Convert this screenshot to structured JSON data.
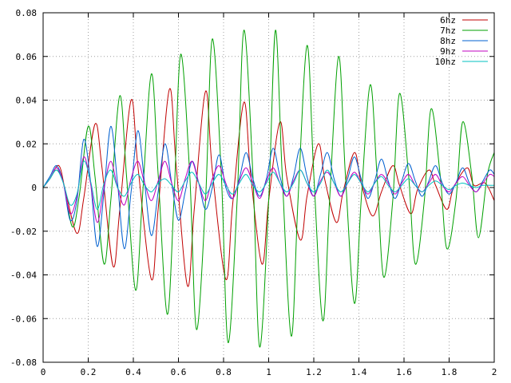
{
  "chart_data": {
    "type": "line",
    "title": "",
    "xlabel": "",
    "ylabel": "",
    "xlim": [
      0,
      2
    ],
    "ylim": [
      -0.08,
      0.08
    ],
    "grid": true,
    "legend_position": "top-right",
    "x_ticks": [
      "0",
      "0.2",
      "0.4",
      "0.6",
      "0.8",
      "1",
      "1.2",
      "1.4",
      "1.6",
      "1.8",
      "2"
    ],
    "x_tick_values": [
      0,
      0.2,
      0.4,
      0.6,
      0.8,
      1.0,
      1.2,
      1.4,
      1.6,
      1.8,
      2.0
    ],
    "y_ticks": [
      "0.08",
      "0.06",
      "0.04",
      "0.02",
      "0",
      "-0.02",
      "-0.04",
      "-0.06",
      "-0.08"
    ],
    "y_tick_values": [
      0.08,
      0.06,
      0.04,
      0.02,
      0,
      -0.02,
      -0.04,
      -0.06,
      -0.08
    ],
    "series": [
      {
        "name": "6hz",
        "color": "#c00000",
        "x": [
          0,
          0.03,
          0.07,
          0.1,
          0.15,
          0.18,
          0.23,
          0.26,
          0.31,
          0.34,
          0.39,
          0.42,
          0.48,
          0.51,
          0.56,
          0.59,
          0.64,
          0.67,
          0.72,
          0.75,
          0.81,
          0.84,
          0.89,
          0.92,
          0.97,
          1.0,
          1.05,
          1.08,
          1.14,
          1.17,
          1.22,
          1.25,
          1.3,
          1.33,
          1.38,
          1.41,
          1.46,
          1.5,
          1.55,
          1.58,
          1.63,
          1.66,
          1.71,
          1.74,
          1.79,
          1.82,
          1.88,
          1.91,
          1.96,
          2.0
        ],
        "y": [
          0,
          0.004,
          0.01,
          -0.002,
          -0.021,
          -0.005,
          0.029,
          0.01,
          -0.036,
          -0.01,
          0.04,
          0.01,
          -0.042,
          -0.01,
          0.045,
          0.01,
          -0.045,
          -0.01,
          0.044,
          0.008,
          -0.042,
          -0.008,
          0.039,
          0.006,
          -0.035,
          -0.006,
          0.03,
          0.005,
          -0.024,
          -0.004,
          0.02,
          0.003,
          -0.016,
          -0.002,
          0.016,
          0.002,
          -0.013,
          -0.002,
          0.01,
          0.001,
          -0.012,
          -0.001,
          0.008,
          0.001,
          -0.01,
          0.0,
          0.009,
          0.001,
          0.002,
          -0.006
        ]
      },
      {
        "name": "7hz",
        "color": "#00a000",
        "x": [
          0,
          0.03,
          0.06,
          0.09,
          0.13,
          0.16,
          0.2,
          0.23,
          0.27,
          0.3,
          0.34,
          0.37,
          0.41,
          0.44,
          0.48,
          0.51,
          0.55,
          0.58,
          0.61,
          0.65,
          0.68,
          0.72,
          0.75,
          0.79,
          0.82,
          0.86,
          0.89,
          0.93,
          0.96,
          1.0,
          1.03,
          1.06,
          1.1,
          1.13,
          1.17,
          1.2,
          1.24,
          1.27,
          1.31,
          1.34,
          1.38,
          1.41,
          1.45,
          1.48,
          1.51,
          1.55,
          1.58,
          1.62,
          1.65,
          1.69,
          1.72,
          1.76,
          1.79,
          1.83,
          1.86,
          1.9,
          1.93,
          1.97,
          2.0
        ],
        "y": [
          0,
          0.004,
          0.008,
          0.002,
          -0.018,
          -0.004,
          0.028,
          0.005,
          -0.035,
          -0.006,
          0.042,
          0.005,
          -0.047,
          -0.005,
          0.052,
          0.006,
          -0.058,
          -0.006,
          0.061,
          0.006,
          -0.065,
          -0.006,
          0.068,
          0.006,
          -0.071,
          -0.006,
          0.072,
          0.006,
          -0.073,
          -0.006,
          0.072,
          0.006,
          -0.068,
          -0.006,
          0.065,
          0.006,
          -0.061,
          -0.006,
          0.06,
          0.006,
          -0.053,
          -0.006,
          0.047,
          0.006,
          -0.041,
          -0.006,
          0.043,
          0.006,
          -0.035,
          -0.006,
          0.036,
          0.006,
          -0.028,
          -0.006,
          0.03,
          0.006,
          -0.023,
          0.006,
          0.016
        ]
      },
      {
        "name": "8hz",
        "color": "#0060d0",
        "x": [
          0,
          0.03,
          0.06,
          0.09,
          0.12,
          0.15,
          0.18,
          0.21,
          0.24,
          0.27,
          0.3,
          0.33,
          0.36,
          0.39,
          0.42,
          0.45,
          0.48,
          0.51,
          0.54,
          0.57,
          0.6,
          0.63,
          0.66,
          0.69,
          0.72,
          0.75,
          0.78,
          0.81,
          0.84,
          0.87,
          0.9,
          0.93,
          0.96,
          0.99,
          1.02,
          1.05,
          1.08,
          1.11,
          1.14,
          1.17,
          1.2,
          1.23,
          1.26,
          1.29,
          1.32,
          1.35,
          1.38,
          1.41,
          1.44,
          1.47,
          1.5,
          1.53,
          1.56,
          1.59,
          1.62,
          1.65,
          1.68,
          1.71,
          1.74,
          1.77,
          1.8,
          1.83,
          1.86,
          1.89,
          1.92,
          1.95,
          1.98,
          2.0
        ],
        "y": [
          0,
          0.005,
          0.01,
          0.002,
          -0.015,
          -0.006,
          0.022,
          0.003,
          -0.027,
          -0.002,
          0.028,
          0.002,
          -0.028,
          -0.002,
          0.026,
          0.002,
          -0.022,
          -0.002,
          0.02,
          0.002,
          -0.015,
          -0.002,
          0.012,
          0.002,
          -0.01,
          0.0,
          0.015,
          0.0,
          -0.005,
          0.004,
          0.016,
          0.004,
          -0.004,
          0.004,
          0.018,
          0.005,
          -0.004,
          0.005,
          0.018,
          0.005,
          -0.004,
          0.006,
          0.016,
          0.004,
          -0.004,
          0.004,
          0.014,
          0.004,
          -0.005,
          0.003,
          0.013,
          0.003,
          -0.005,
          0.003,
          0.011,
          0.003,
          -0.004,
          0.003,
          0.01,
          0.002,
          -0.003,
          0.002,
          0.009,
          0.002,
          -0.002,
          0.003,
          0.008,
          0.006
        ]
      },
      {
        "name": "9hz",
        "color": "#c000c0",
        "x": [
          0,
          0.03,
          0.06,
          0.09,
          0.12,
          0.15,
          0.18,
          0.21,
          0.24,
          0.27,
          0.3,
          0.33,
          0.36,
          0.39,
          0.42,
          0.45,
          0.48,
          0.51,
          0.54,
          0.57,
          0.6,
          0.63,
          0.66,
          0.69,
          0.72,
          0.75,
          0.78,
          0.81,
          0.84,
          0.87,
          0.9,
          0.93,
          0.96,
          0.99,
          1.02,
          1.05,
          1.08,
          1.11,
          1.14,
          1.17,
          1.2,
          1.23,
          1.26,
          1.29,
          1.32,
          1.35,
          1.38,
          1.41,
          1.44,
          1.47,
          1.5,
          1.53,
          1.56,
          1.59,
          1.62,
          1.65,
          1.68,
          1.71,
          1.74,
          1.77,
          1.8,
          1.83,
          1.86,
          1.89,
          1.92,
          1.95,
          1.98,
          2.0
        ],
        "y": [
          0,
          0.004,
          0.009,
          0.002,
          -0.012,
          -0.004,
          0.014,
          0.002,
          -0.016,
          0.0,
          0.012,
          0.0,
          -0.008,
          0.004,
          0.012,
          0.002,
          -0.006,
          0.003,
          0.012,
          0.002,
          -0.006,
          0.004,
          0.012,
          0.002,
          -0.006,
          0.004,
          0.01,
          0.002,
          -0.005,
          0.003,
          0.009,
          0.002,
          -0.005,
          0.003,
          0.009,
          0.002,
          -0.004,
          0.003,
          0.008,
          0.002,
          -0.004,
          0.003,
          0.007,
          0.002,
          -0.004,
          0.002,
          0.007,
          0.002,
          -0.003,
          0.002,
          0.006,
          0.002,
          -0.003,
          0.002,
          0.006,
          0.001,
          -0.002,
          0.002,
          0.006,
          0.001,
          -0.002,
          0.002,
          0.005,
          0.001,
          -0.002,
          0.002,
          0.006,
          0.005
        ]
      },
      {
        "name": "10hz",
        "color": "#00c0c0",
        "x": [
          0,
          0.03,
          0.06,
          0.09,
          0.12,
          0.15,
          0.18,
          0.21,
          0.24,
          0.27,
          0.3,
          0.33,
          0.36,
          0.39,
          0.42,
          0.45,
          0.48,
          0.51,
          0.54,
          0.57,
          0.6,
          0.63,
          0.66,
          0.69,
          0.72,
          0.75,
          0.78,
          0.81,
          0.84,
          0.87,
          0.9,
          0.93,
          0.96,
          0.99,
          1.02,
          1.05,
          1.08,
          1.11,
          1.14,
          1.17,
          1.2,
          1.23,
          1.26,
          1.29,
          1.32,
          1.35,
          1.38,
          1.41,
          1.44,
          1.47,
          1.5,
          1.53,
          1.56,
          1.59,
          1.62,
          1.65,
          1.68,
          1.71,
          1.74,
          1.77,
          1.8,
          1.83,
          1.86,
          1.89,
          1.92,
          1.95,
          1.98,
          2.0
        ],
        "y": [
          0,
          0.004,
          0.008,
          0.002,
          -0.008,
          -0.003,
          0.012,
          0.003,
          -0.01,
          0.002,
          0.008,
          0.0,
          -0.004,
          0.002,
          0.006,
          0.001,
          -0.002,
          0.002,
          0.004,
          0.001,
          -0.002,
          0.003,
          0.007,
          0.002,
          -0.003,
          0.002,
          0.006,
          0.001,
          -0.003,
          0.002,
          0.006,
          0.001,
          -0.002,
          0.002,
          0.007,
          0.002,
          -0.002,
          0.002,
          0.008,
          0.002,
          -0.002,
          0.002,
          0.008,
          0.002,
          -0.002,
          0.002,
          0.006,
          0.002,
          -0.002,
          0.002,
          0.005,
          0.001,
          -0.002,
          0.001,
          0.004,
          0.001,
          -0.002,
          0.001,
          0.003,
          0.001,
          -0.001,
          0.001,
          0.002,
          0.001,
          0.0,
          0.001,
          0.001,
          0.001
        ]
      }
    ]
  }
}
